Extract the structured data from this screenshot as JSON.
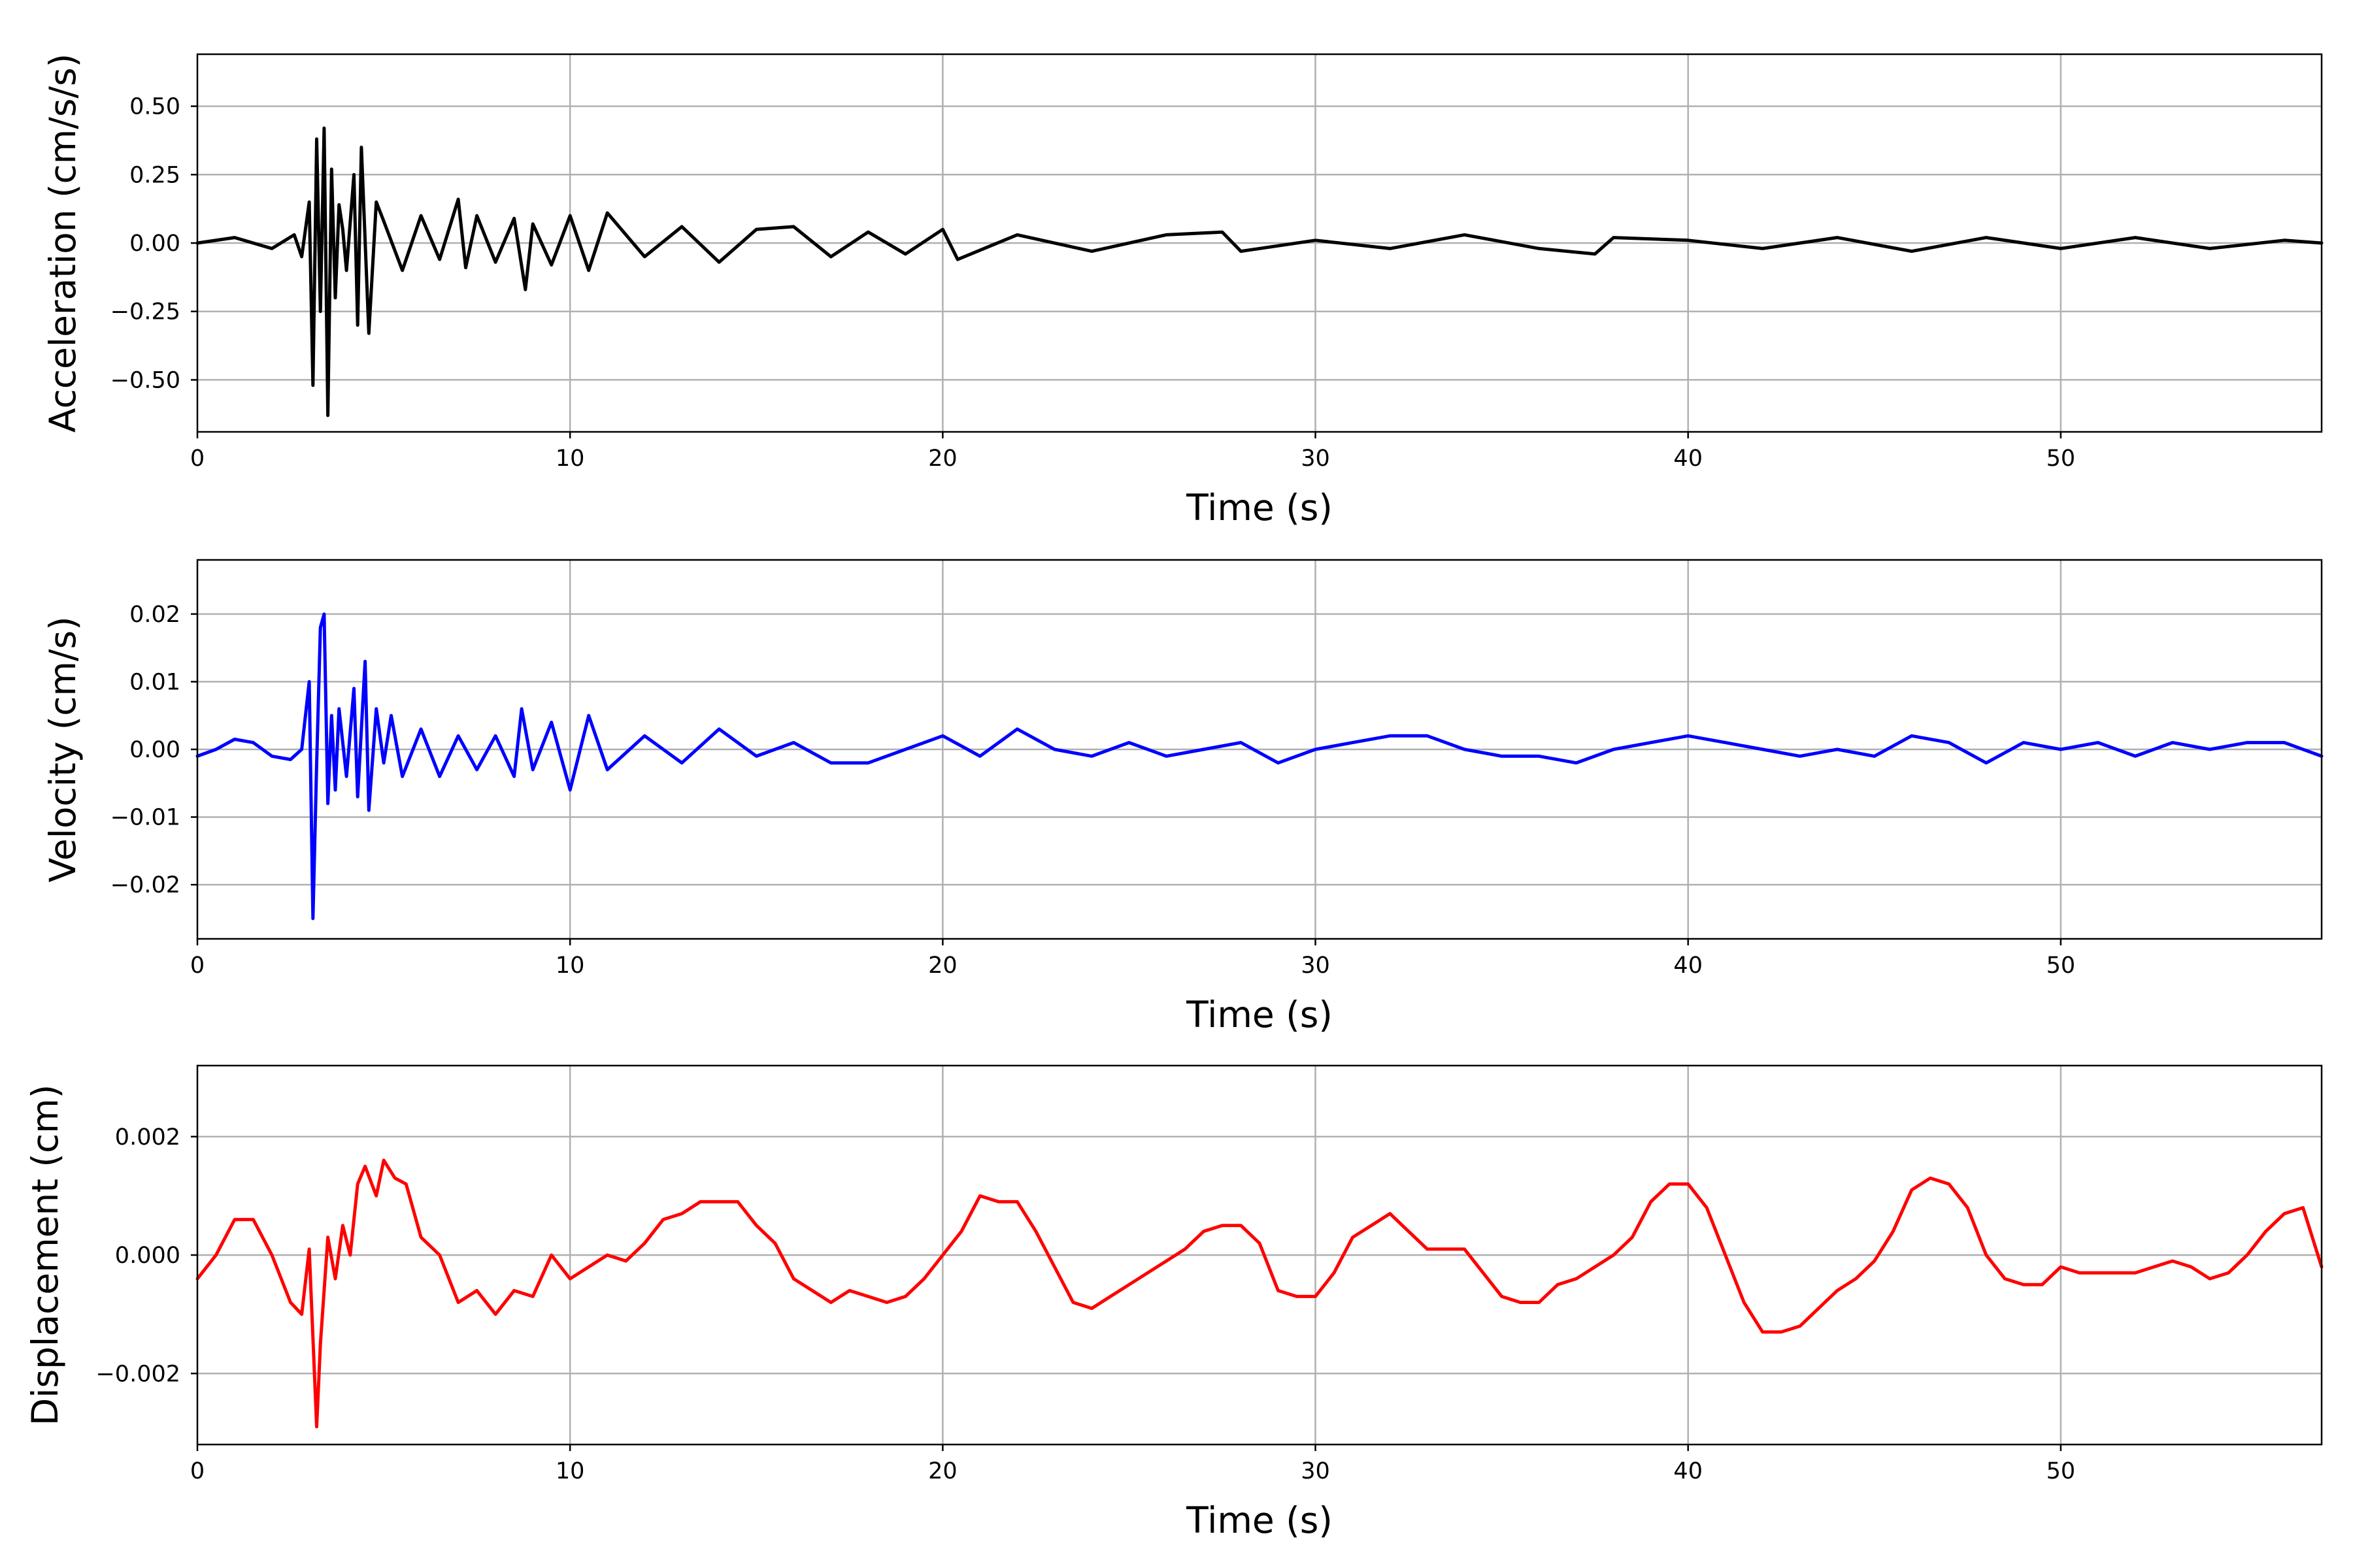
{
  "colors": {
    "background": "#ffffff",
    "grid": "#b0b0b0",
    "axes": "#000000"
  },
  "chart_data": [
    {
      "type": "line",
      "xlabel": "Time (s)",
      "ylabel": "Acceleration (cm/s/s)",
      "xlim": [
        0,
        57
      ],
      "ylim": [
        -0.69,
        0.69
      ],
      "xticks": [
        0,
        10,
        20,
        30,
        40,
        50
      ],
      "xtick_labels": [
        "0",
        "10",
        "20",
        "30",
        "40",
        "50"
      ],
      "yticks": [
        -0.5,
        -0.25,
        0,
        0.25,
        0.5
      ],
      "ytick_labels": [
        "−0.50",
        "−0.25",
        "0.00",
        "0.25",
        "0.50"
      ],
      "grid": true,
      "series": [
        {
          "color": "#000000",
          "x": [
            0,
            1,
            2,
            2.6,
            2.8,
            3.0,
            3.1,
            3.2,
            3.3,
            3.4,
            3.5,
            3.6,
            3.7,
            3.8,
            3.9,
            4.0,
            4.2,
            4.3,
            4.4,
            4.6,
            4.8,
            5.0,
            5.5,
            6.0,
            6.5,
            7.0,
            7.2,
            7.5,
            8.0,
            8.5,
            8.8,
            9.0,
            9.5,
            10.0,
            10.5,
            11.0,
            12.0,
            13.0,
            14.0,
            15.0,
            16.0,
            17.0,
            18.0,
            19.0,
            20.0,
            20.4,
            22.0,
            24.0,
            26.0,
            27.5,
            28.0,
            30.0,
            32.0,
            34.0,
            36.0,
            37.5,
            38.0,
            40.0,
            42.0,
            44.0,
            46.0,
            48.0,
            50.0,
            52.0,
            54.0,
            56.0,
            57.0
          ],
          "y": [
            0.0,
            0.02,
            -0.02,
            0.03,
            -0.05,
            0.15,
            -0.52,
            0.38,
            -0.25,
            0.42,
            -0.63,
            0.27,
            -0.2,
            0.14,
            0.05,
            -0.1,
            0.25,
            -0.3,
            0.35,
            -0.33,
            0.15,
            0.08,
            -0.1,
            0.1,
            -0.06,
            0.16,
            -0.09,
            0.1,
            -0.07,
            0.09,
            -0.17,
            0.07,
            -0.08,
            0.1,
            -0.1,
            0.11,
            -0.05,
            0.06,
            -0.07,
            0.05,
            0.06,
            -0.05,
            0.04,
            -0.04,
            0.05,
            -0.06,
            0.03,
            -0.03,
            0.03,
            0.04,
            -0.03,
            0.01,
            -0.02,
            0.03,
            -0.02,
            -0.04,
            0.02,
            0.01,
            -0.02,
            0.02,
            -0.03,
            0.02,
            -0.02,
            0.02,
            -0.02,
            0.01,
            0.0
          ]
        }
      ]
    },
    {
      "type": "line",
      "xlabel": "Time (s)",
      "ylabel": "Velocity (cm/s)",
      "xlim": [
        0,
        57
      ],
      "ylim": [
        -0.028,
        0.028
      ],
      "xticks": [
        0,
        10,
        20,
        30,
        40,
        50
      ],
      "xtick_labels": [
        "0",
        "10",
        "20",
        "30",
        "40",
        "50"
      ],
      "yticks": [
        -0.02,
        -0.01,
        0,
        0.01,
        0.02
      ],
      "ytick_labels": [
        "−0.02",
        "−0.01",
        "0.00",
        "0.01",
        "0.02"
      ],
      "grid": true,
      "series": [
        {
          "color": "#0000ff",
          "x": [
            0,
            0.5,
            1.0,
            1.5,
            2.0,
            2.5,
            2.8,
            3.0,
            3.1,
            3.2,
            3.3,
            3.4,
            3.5,
            3.6,
            3.7,
            3.8,
            4.0,
            4.2,
            4.3,
            4.5,
            4.6,
            4.8,
            5.0,
            5.2,
            5.5,
            6.0,
            6.5,
            7.0,
            7.5,
            8.0,
            8.5,
            8.7,
            9.0,
            9.5,
            10.0,
            10.5,
            11.0,
            12.0,
            13.0,
            14.0,
            15.0,
            16.0,
            17.0,
            18.0,
            19.0,
            20.0,
            21.0,
            22.0,
            23.0,
            24.0,
            25.0,
            26.0,
            27.0,
            28.0,
            29.0,
            30.0,
            31.0,
            32.0,
            33.0,
            34.0,
            35.0,
            36.0,
            37.0,
            38.0,
            39.0,
            40.0,
            41.0,
            42.0,
            43.0,
            44.0,
            45.0,
            46.0,
            47.0,
            48.0,
            49.0,
            50.0,
            51.0,
            52.0,
            53.0,
            54.0,
            55.0,
            56.0,
            57.0
          ],
          "y": [
            -0.001,
            0.0,
            0.0015,
            0.001,
            -0.001,
            -0.0015,
            0.0,
            0.01,
            -0.025,
            -0.002,
            0.018,
            0.02,
            -0.008,
            0.005,
            -0.006,
            0.006,
            -0.004,
            0.009,
            -0.007,
            0.013,
            -0.009,
            0.006,
            -0.002,
            0.005,
            -0.004,
            0.003,
            -0.004,
            0.002,
            -0.003,
            0.002,
            -0.004,
            0.006,
            -0.003,
            0.004,
            -0.006,
            0.005,
            -0.003,
            0.002,
            -0.002,
            0.003,
            -0.001,
            0.001,
            -0.002,
            -0.002,
            0.0,
            0.002,
            -0.001,
            0.003,
            0.0,
            -0.001,
            0.001,
            -0.001,
            0.0,
            0.001,
            -0.002,
            0.0,
            0.001,
            0.002,
            0.002,
            0.0,
            -0.001,
            -0.001,
            -0.002,
            0.0,
            0.001,
            0.002,
            0.001,
            0.0,
            -0.001,
            0.0,
            -0.001,
            0.002,
            0.001,
            -0.002,
            0.001,
            0.0,
            0.001,
            -0.001,
            0.001,
            0.0,
            0.001,
            0.001,
            -0.001
          ]
        }
      ]
    },
    {
      "type": "line",
      "xlabel": "Time (s)",
      "ylabel": "Displacement (cm)",
      "xlim": [
        0,
        57
      ],
      "ylim": [
        -0.0032,
        0.0032
      ],
      "xticks": [
        0,
        10,
        20,
        30,
        40,
        50
      ],
      "xtick_labels": [
        "0",
        "10",
        "20",
        "30",
        "40",
        "50"
      ],
      "yticks": [
        -0.002,
        0,
        0.002
      ],
      "ytick_labels": [
        "−0.002",
        "0.000",
        "0.002"
      ],
      "grid": true,
      "series": [
        {
          "color": "#ff0000",
          "x": [
            0,
            0.5,
            1.0,
            1.5,
            2.0,
            2.5,
            2.8,
            3.0,
            3.2,
            3.3,
            3.5,
            3.7,
            3.9,
            4.1,
            4.3,
            4.5,
            4.8,
            5.0,
            5.3,
            5.6,
            6.0,
            6.5,
            7.0,
            7.5,
            8.0,
            8.5,
            9.0,
            9.5,
            10.0,
            10.5,
            11.0,
            11.5,
            12.0,
            12.5,
            13.0,
            13.5,
            14.0,
            14.5,
            15.0,
            15.5,
            16.0,
            16.5,
            17.0,
            17.5,
            18.0,
            18.5,
            19.0,
            19.5,
            20.0,
            20.5,
            21.0,
            21.5,
            22.0,
            22.5,
            23.0,
            23.5,
            24.0,
            24.5,
            25.0,
            25.5,
            26.0,
            26.5,
            27.0,
            27.5,
            28.0,
            28.5,
            29.0,
            29.5,
            30.0,
            30.5,
            31.0,
            31.5,
            32.0,
            32.5,
            33.0,
            33.5,
            34.0,
            34.5,
            35.0,
            35.5,
            36.0,
            36.5,
            37.0,
            37.5,
            38.0,
            38.5,
            39.0,
            39.5,
            40.0,
            40.5,
            41.0,
            41.5,
            42.0,
            42.5,
            43.0,
            43.5,
            44.0,
            44.5,
            45.0,
            45.5,
            46.0,
            46.5,
            47.0,
            47.5,
            48.0,
            48.5,
            49.0,
            49.5,
            50.0,
            50.5,
            51.0,
            51.5,
            52.0,
            52.5,
            53.0,
            53.5,
            54.0,
            54.5,
            55.0,
            55.5,
            56.0,
            56.5,
            57.0
          ],
          "y": [
            -0.0004,
            0.0,
            0.0006,
            0.0006,
            0.0,
            -0.0008,
            -0.001,
            0.0001,
            -0.0029,
            -0.0015,
            0.0003,
            -0.0004,
            0.0005,
            0.0,
            0.0012,
            0.0015,
            0.001,
            0.0016,
            0.0013,
            0.0012,
            0.0003,
            0.0,
            -0.0008,
            -0.0006,
            -0.001,
            -0.0006,
            -0.0007,
            0.0,
            -0.0004,
            -0.0002,
            0.0,
            -0.0001,
            0.0002,
            0.0006,
            0.0007,
            0.0009,
            0.0009,
            0.0009,
            0.0005,
            0.0002,
            -0.0004,
            -0.0006,
            -0.0008,
            -0.0006,
            -0.0007,
            -0.0008,
            -0.0007,
            -0.0004,
            0.0,
            0.0004,
            0.001,
            0.0009,
            0.0009,
            0.0004,
            -0.0002,
            -0.0008,
            -0.0009,
            -0.0007,
            -0.0005,
            -0.0003,
            -0.0001,
            0.0001,
            0.0004,
            0.0005,
            0.0005,
            0.0002,
            -0.0006,
            -0.0007,
            -0.0007,
            -0.0003,
            0.0003,
            0.0005,
            0.0007,
            0.0004,
            0.0001,
            0.0001,
            0.0001,
            -0.0003,
            -0.0007,
            -0.0008,
            -0.0008,
            -0.0005,
            -0.0004,
            -0.0002,
            0.0,
            0.0003,
            0.0009,
            0.0012,
            0.0012,
            0.0008,
            0.0,
            -0.0008,
            -0.0013,
            -0.0013,
            -0.0012,
            -0.0009,
            -0.0006,
            -0.0004,
            -0.0001,
            0.0004,
            0.0011,
            0.0013,
            0.0012,
            0.0008,
            0.0,
            -0.0004,
            -0.0005,
            -0.0005,
            -0.0002,
            -0.0003,
            -0.0003,
            -0.0003,
            -0.0003,
            -0.0002,
            -0.0001,
            -0.0002,
            -0.0004,
            -0.0003,
            0.0,
            0.0004,
            0.0007,
            0.0008,
            -0.0002
          ]
        }
      ]
    }
  ]
}
